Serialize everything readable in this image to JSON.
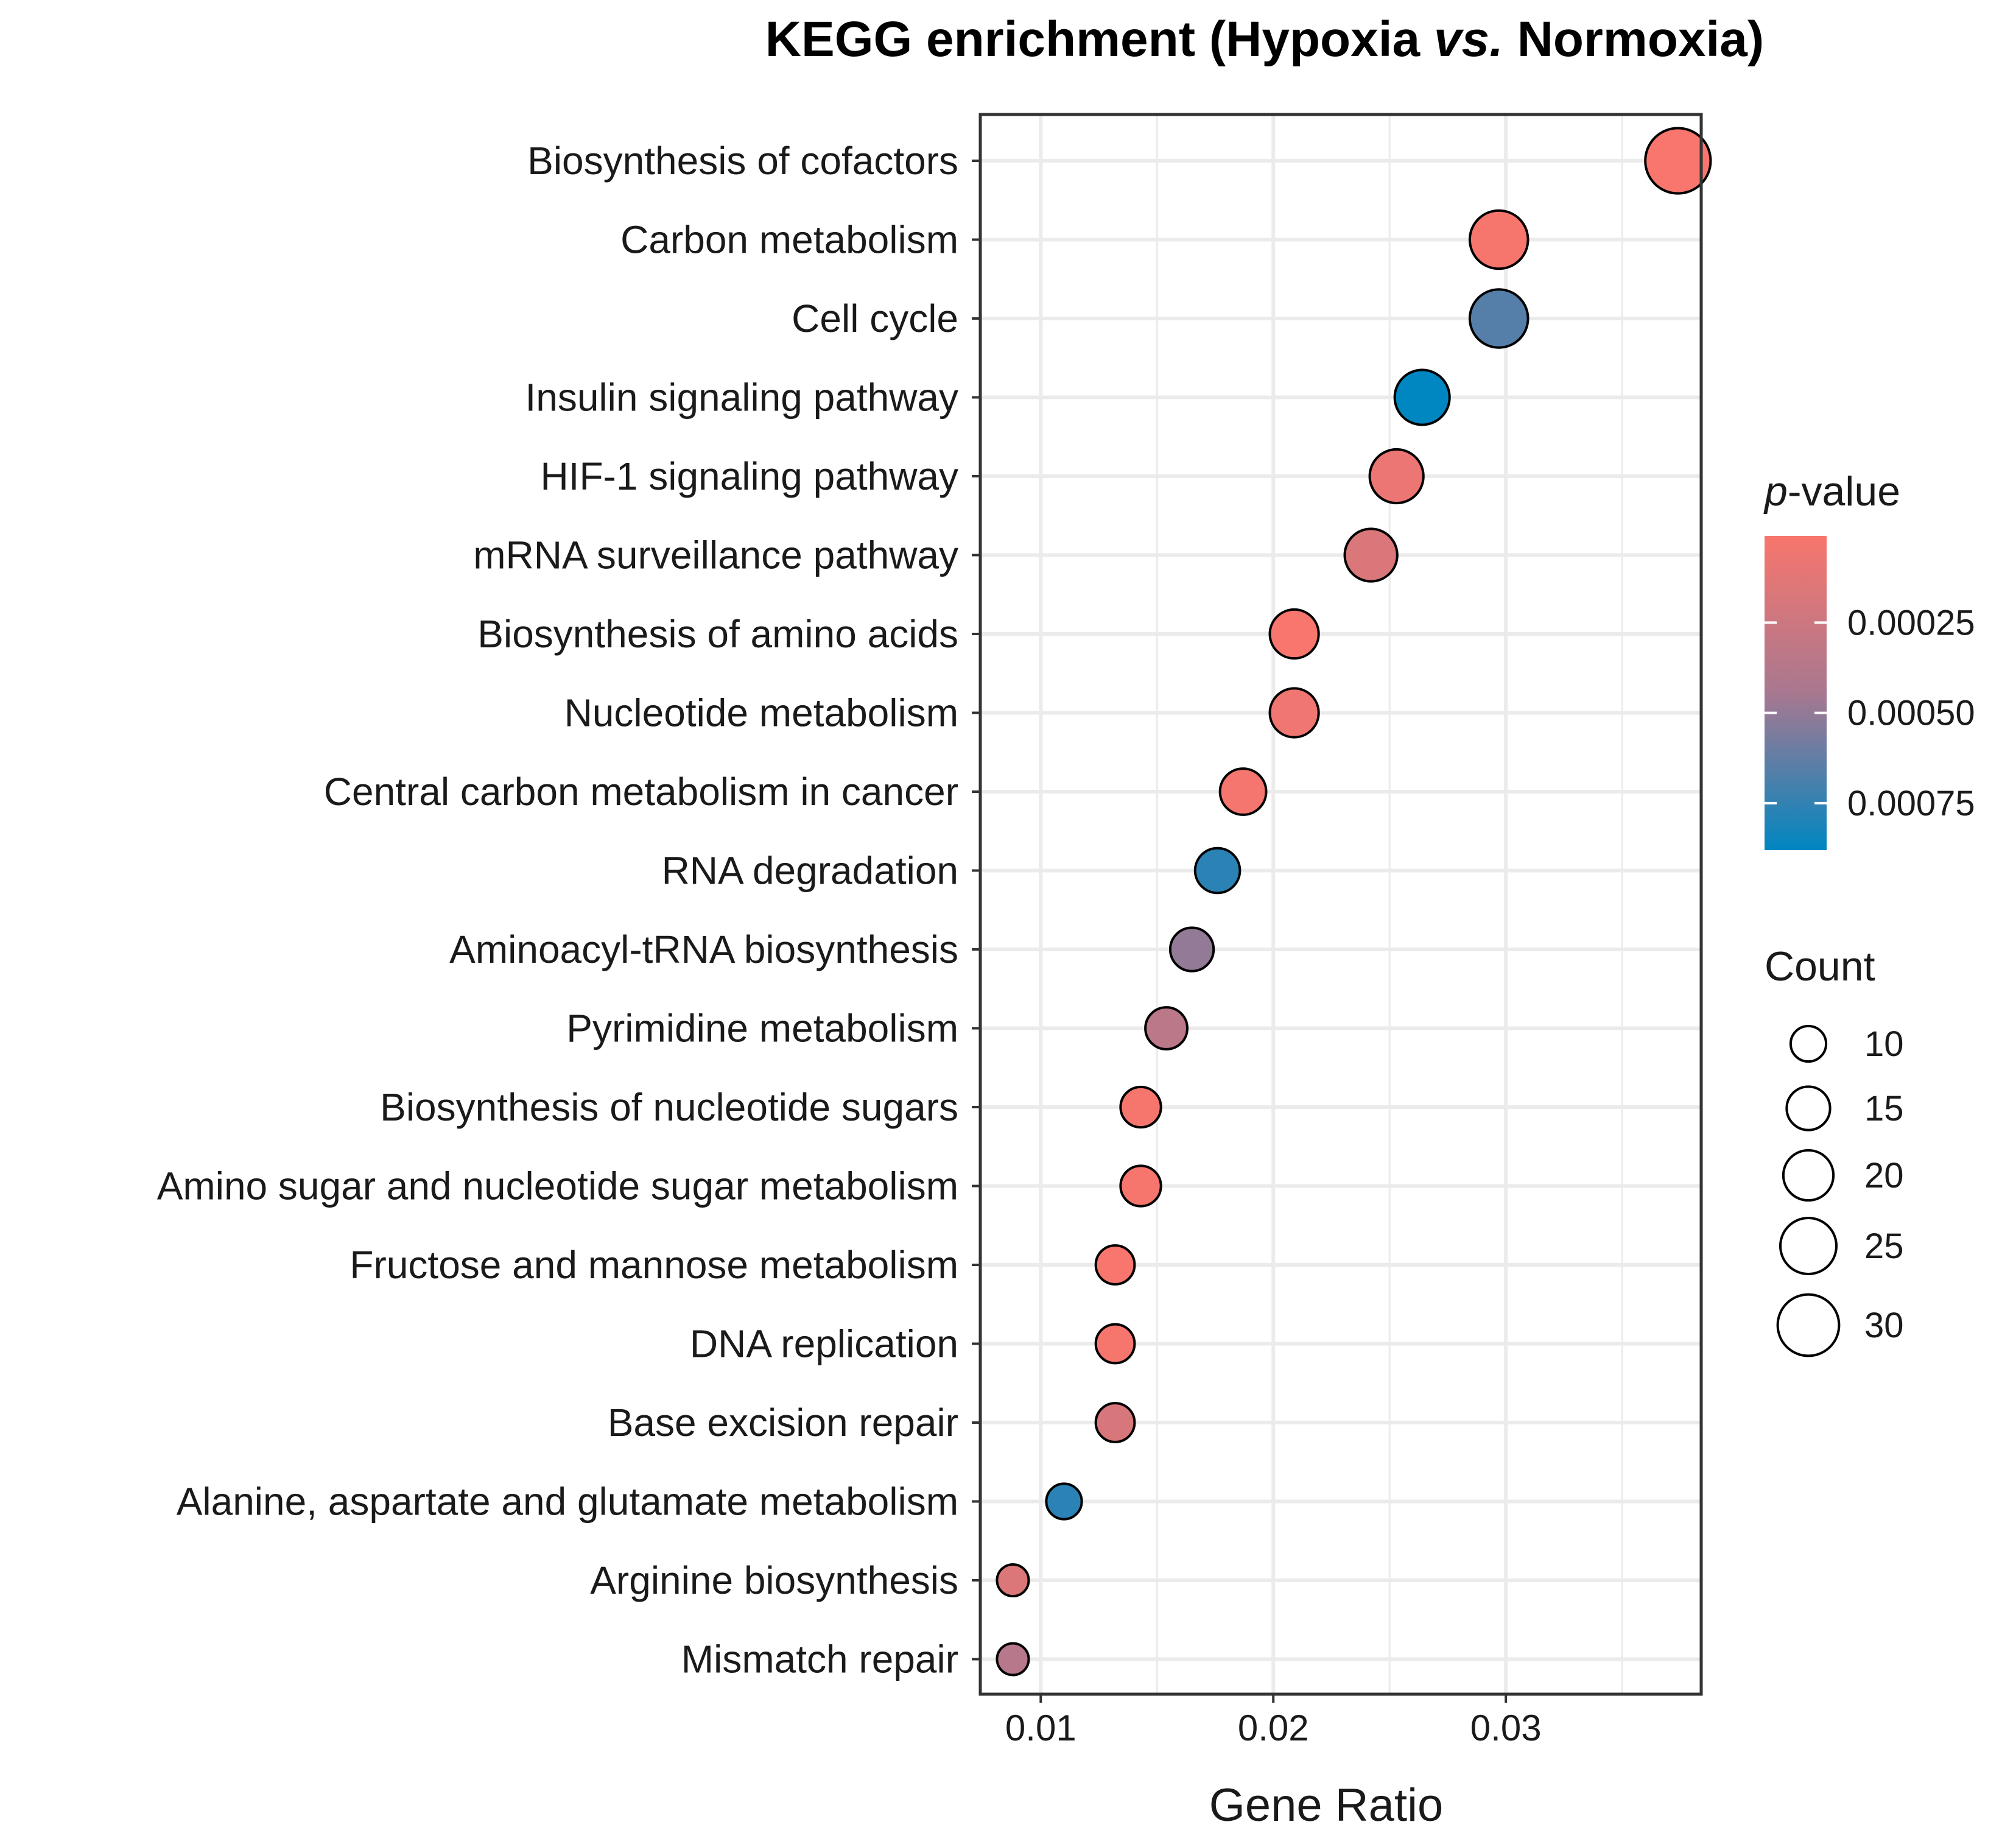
{
  "chart_data": {
    "type": "scatter",
    "title": {
      "prefix": "KEGG enrichment (Hypoxia ",
      "italic": "vs.",
      "suffix": " Normoxia)"
    },
    "xlabel": "Gene Ratio",
    "ylabel": "",
    "xlim": [
      0.0074,
      0.0384
    ],
    "xticks": [
      0.01,
      0.02,
      0.03
    ],
    "xtick_labels": [
      "0.01",
      "0.02",
      "0.03"
    ],
    "grid": true,
    "categories": [
      "Biosynthesis of cofactors",
      "Carbon metabolism",
      "Cell cycle",
      "Insulin signaling pathway",
      "HIF-1 signaling pathway",
      "mRNA surveillance pathway",
      "Biosynthesis of amino acids",
      "Nucleotide metabolism",
      "Central carbon metabolism in cancer",
      "RNA degradation",
      "Aminoacyl-tRNA biosynthesis",
      "Pyrimidine metabolism",
      "Biosynthesis of nucleotide sugars",
      "Amino sugar and nucleotide sugar metabolism",
      "Fructose and mannose metabolism",
      "DNA replication",
      "Base excision repair",
      "Alanine, aspartate and glutamate metabolism",
      "Arginine biosynthesis",
      "Mismatch repair"
    ],
    "gene_ratio": [
      0.0374,
      0.0297,
      0.0297,
      0.0264,
      0.0253,
      0.0242,
      0.0209,
      0.0209,
      0.0187,
      0.0176,
      0.0165,
      0.0154,
      0.0143,
      0.0143,
      0.0132,
      0.0132,
      0.0132,
      0.011,
      0.0088,
      0.0088
    ],
    "count": [
      34,
      27,
      27,
      24,
      23,
      22,
      19,
      19,
      17,
      16,
      15,
      14,
      13,
      13,
      12,
      12,
      12,
      10,
      8,
      8
    ],
    "p_value": [
      1e-05,
      2e-05,
      0.00066,
      0.00088,
      8e-05,
      0.00018,
      1e-05,
      6e-05,
      3e-05,
      0.00077,
      0.0005,
      0.00034,
      2e-05,
      2e-05,
      1e-05,
      2e-05,
      0.00019,
      0.00077,
      0.00016,
      0.00037
    ],
    "color_legend": {
      "title_italic": "p",
      "title_suffix": "-value",
      "range": [
        1e-05,
        0.00088
      ],
      "ticks": [
        0.00025,
        0.0005,
        0.00075
      ],
      "tick_labels": [
        "0.00025",
        "0.00050",
        "0.00075"
      ],
      "low_color": "#F8766D",
      "high_color": "#0086C1",
      "placement": "right"
    },
    "size_legend": {
      "title": "Count",
      "values": [
        10,
        15,
        20,
        25,
        30
      ],
      "labels": [
        "10",
        "15",
        "20",
        "25",
        "30"
      ],
      "placement": "right"
    }
  }
}
